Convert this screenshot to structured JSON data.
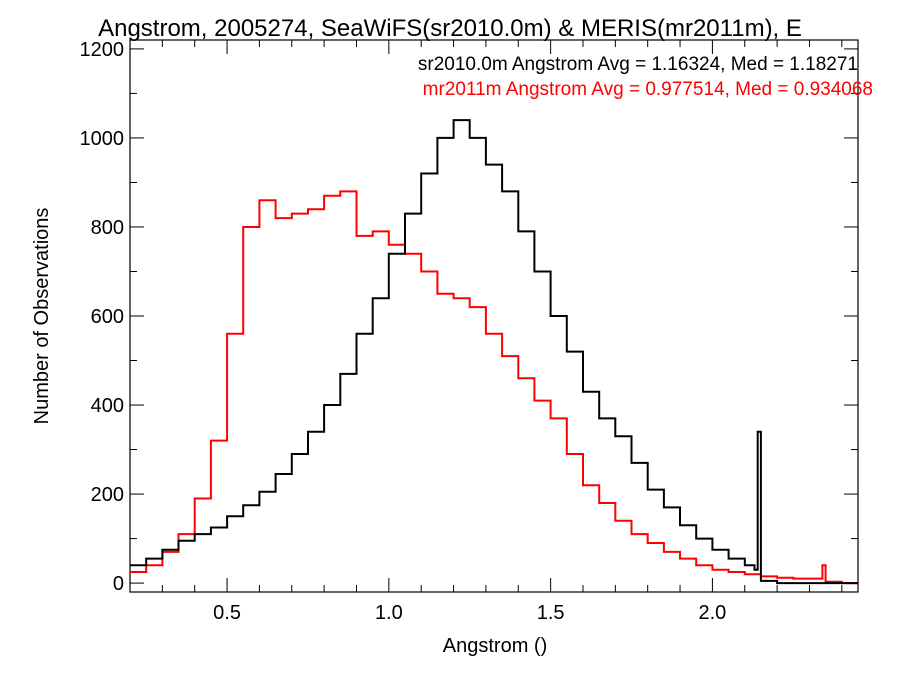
{
  "chart_data": {
    "type": "line",
    "title": "Angstrom, 2005274, SeaWiFS(sr2010.0m) & MERIS(mr2011m), E",
    "xlabel": "Angstrom ()",
    "ylabel": "Number of Observations",
    "xlim": [
      0.2,
      2.45
    ],
    "ylim": [
      -20,
      1220
    ],
    "xticks": [
      0.5,
      1.0,
      1.5,
      2.0
    ],
    "xtick_labels": [
      "0.5",
      "1.0",
      "1.5",
      "2.0"
    ],
    "yticks": [
      0,
      200,
      400,
      600,
      800,
      1000,
      1200
    ],
    "ytick_labels": [
      "0",
      "200",
      "400",
      "600",
      "800",
      "1000",
      "1200"
    ],
    "grid": false,
    "legend_placement": "top-right",
    "annotations": [
      {
        "text": "sr2010.0m Angstrom Avg = 1.16324, Med = 1.18271",
        "color": "#000000"
      },
      {
        "text": "mr2011m Angstrom Avg = 0.977514, Med = 0.934068",
        "color": "#ff0000"
      }
    ],
    "series": [
      {
        "color": "#000000",
        "x": [
          0.2,
          0.25,
          0.3,
          0.35,
          0.4,
          0.45,
          0.5,
          0.55,
          0.6,
          0.65,
          0.7,
          0.75,
          0.8,
          0.85,
          0.9,
          0.95,
          1.0,
          1.05,
          1.1,
          1.15,
          1.2,
          1.25,
          1.3,
          1.35,
          1.4,
          1.45,
          1.5,
          1.55,
          1.6,
          1.65,
          1.7,
          1.75,
          1.8,
          1.85,
          1.9,
          1.95,
          2.0,
          2.05,
          2.1,
          2.13,
          2.14,
          2.15,
          2.2,
          2.3,
          2.4,
          2.45
        ],
        "y": [
          40,
          55,
          75,
          95,
          110,
          125,
          150,
          175,
          205,
          245,
          290,
          340,
          400,
          470,
          560,
          640,
          740,
          830,
          920,
          1000,
          1040,
          1000,
          940,
          880,
          790,
          700,
          600,
          520,
          430,
          370,
          330,
          270,
          210,
          170,
          130,
          100,
          75,
          55,
          40,
          30,
          340,
          5,
          0,
          0,
          0,
          0
        ]
      },
      {
        "color": "#ff0000",
        "x": [
          0.2,
          0.25,
          0.3,
          0.35,
          0.4,
          0.45,
          0.5,
          0.55,
          0.6,
          0.65,
          0.7,
          0.75,
          0.8,
          0.85,
          0.9,
          0.95,
          1.0,
          1.05,
          1.1,
          1.15,
          1.2,
          1.25,
          1.3,
          1.35,
          1.4,
          1.45,
          1.5,
          1.55,
          1.6,
          1.65,
          1.7,
          1.75,
          1.8,
          1.85,
          1.9,
          1.95,
          2.0,
          2.05,
          2.1,
          2.15,
          2.2,
          2.25,
          2.3,
          2.33,
          2.34,
          2.35,
          2.4,
          2.45
        ],
        "y": [
          25,
          40,
          70,
          110,
          190,
          320,
          560,
          800,
          860,
          820,
          830,
          840,
          870,
          880,
          780,
          790,
          760,
          740,
          700,
          650,
          640,
          620,
          560,
          510,
          460,
          410,
          370,
          290,
          220,
          180,
          140,
          110,
          90,
          70,
          55,
          40,
          30,
          25,
          20,
          15,
          12,
          10,
          10,
          10,
          40,
          3,
          0,
          0
        ]
      }
    ]
  }
}
